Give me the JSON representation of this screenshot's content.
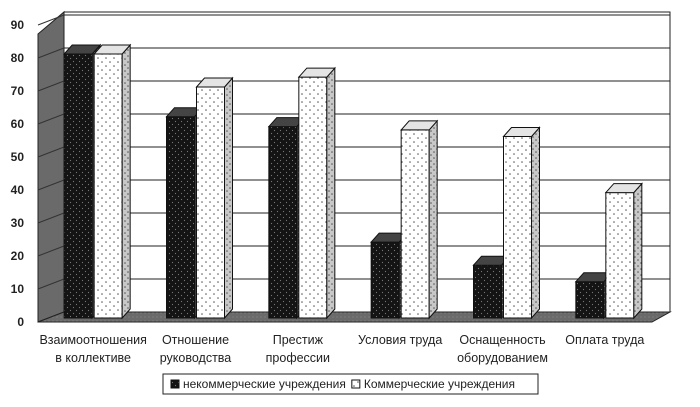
{
  "chart_data": {
    "type": "bar",
    "style": "3d clustered column",
    "ylim": [
      0,
      90
    ],
    "yticks": [
      0,
      10,
      20,
      30,
      40,
      50,
      60,
      70,
      80,
      90
    ],
    "grid": true,
    "legend_position": "bottom",
    "categories": [
      [
        "Взаимоотношения",
        "в коллективе"
      ],
      [
        "Отношение",
        "руководства"
      ],
      [
        "Престиж",
        "профессии"
      ],
      [
        "Условия труда"
      ],
      [
        "Оснащенность",
        "оборудованием"
      ],
      [
        "Оплата труда"
      ]
    ],
    "series": [
      {
        "name": "некоммерческие учреждения",
        "values": [
          80,
          61,
          58,
          23,
          16,
          11
        ],
        "color": "#1a1a1a",
        "pattern": "dark-stipple"
      },
      {
        "name": "Коммерческие учреждения",
        "values": [
          80,
          70,
          73,
          57,
          55,
          38
        ],
        "color": "#ffffff",
        "pattern": "light-dots"
      }
    ],
    "colors": {
      "wall": "#6a6a6a",
      "gridline": "#222222",
      "floor": "#6a6a6a"
    }
  }
}
